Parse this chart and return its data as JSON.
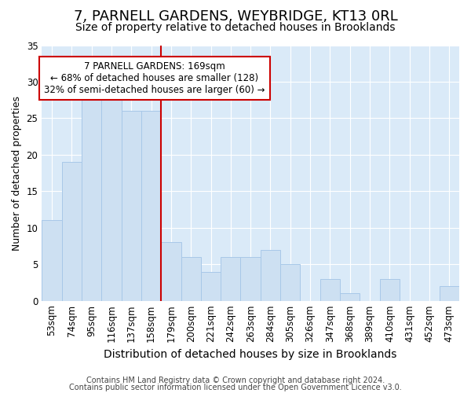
{
  "title": "7, PARNELL GARDENS, WEYBRIDGE, KT13 0RL",
  "subtitle": "Size of property relative to detached houses in Brooklands",
  "xlabel": "Distribution of detached houses by size in Brooklands",
  "ylabel": "Number of detached properties",
  "categories": [
    "53sqm",
    "74sqm",
    "95sqm",
    "116sqm",
    "137sqm",
    "158sqm",
    "179sqm",
    "200sqm",
    "221sqm",
    "242sqm",
    "263sqm",
    "284sqm",
    "305sqm",
    "326sqm",
    "347sqm",
    "368sqm",
    "389sqm",
    "410sqm",
    "431sqm",
    "452sqm",
    "473sqm"
  ],
  "values": [
    11,
    19,
    28,
    28,
    26,
    26,
    8,
    6,
    4,
    6,
    6,
    7,
    5,
    0,
    3,
    1,
    0,
    3,
    0,
    0,
    2
  ],
  "bar_color": "#cde0f2",
  "bar_edge_color": "#a8c8e8",
  "vline_color": "#cc0000",
  "annotation_line1": "7 PARNELL GARDENS: 169sqm",
  "annotation_line2": "← 68% of detached houses are smaller (128)",
  "annotation_line3": "32% of semi-detached houses are larger (60) →",
  "annotation_box_edge": "#cc0000",
  "ylim": [
    0,
    35
  ],
  "yticks": [
    0,
    5,
    10,
    15,
    20,
    25,
    30,
    35
  ],
  "footer_line1": "Contains HM Land Registry data © Crown copyright and database right 2024.",
  "footer_line2": "Contains public sector information licensed under the Open Government Licence v3.0.",
  "bg_color": "#ffffff",
  "plot_bg_color": "#daeaf8",
  "title_fontsize": 13,
  "subtitle_fontsize": 10,
  "xlabel_fontsize": 10,
  "ylabel_fontsize": 9,
  "tick_fontsize": 8.5,
  "annotation_fontsize": 8.5,
  "footer_fontsize": 7
}
